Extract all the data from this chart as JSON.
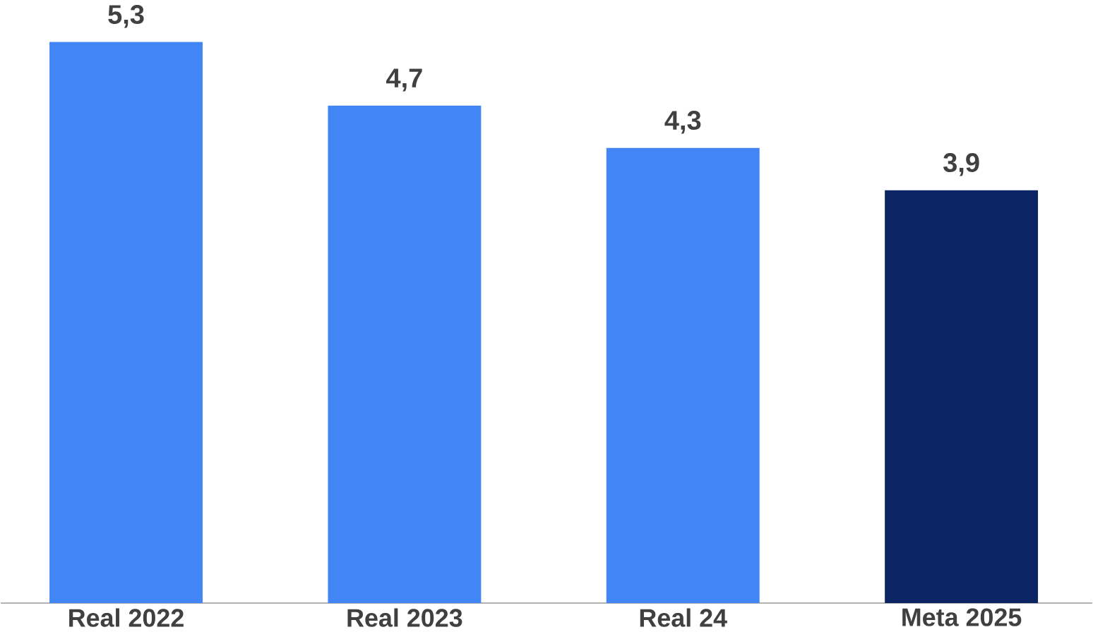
{
  "chart_data": {
    "type": "bar",
    "categories": [
      "Real 2022",
      "Real 2023",
      "Real 24",
      "Meta 2025"
    ],
    "values": [
      5.3,
      4.7,
      4.3,
      3.9
    ],
    "colors": [
      "#4285f4",
      "#4285f4",
      "#4285f4",
      "#0b2463"
    ],
    "value_labels": [
      "5,3",
      "4,7",
      "4,3",
      "3,9"
    ]
  }
}
